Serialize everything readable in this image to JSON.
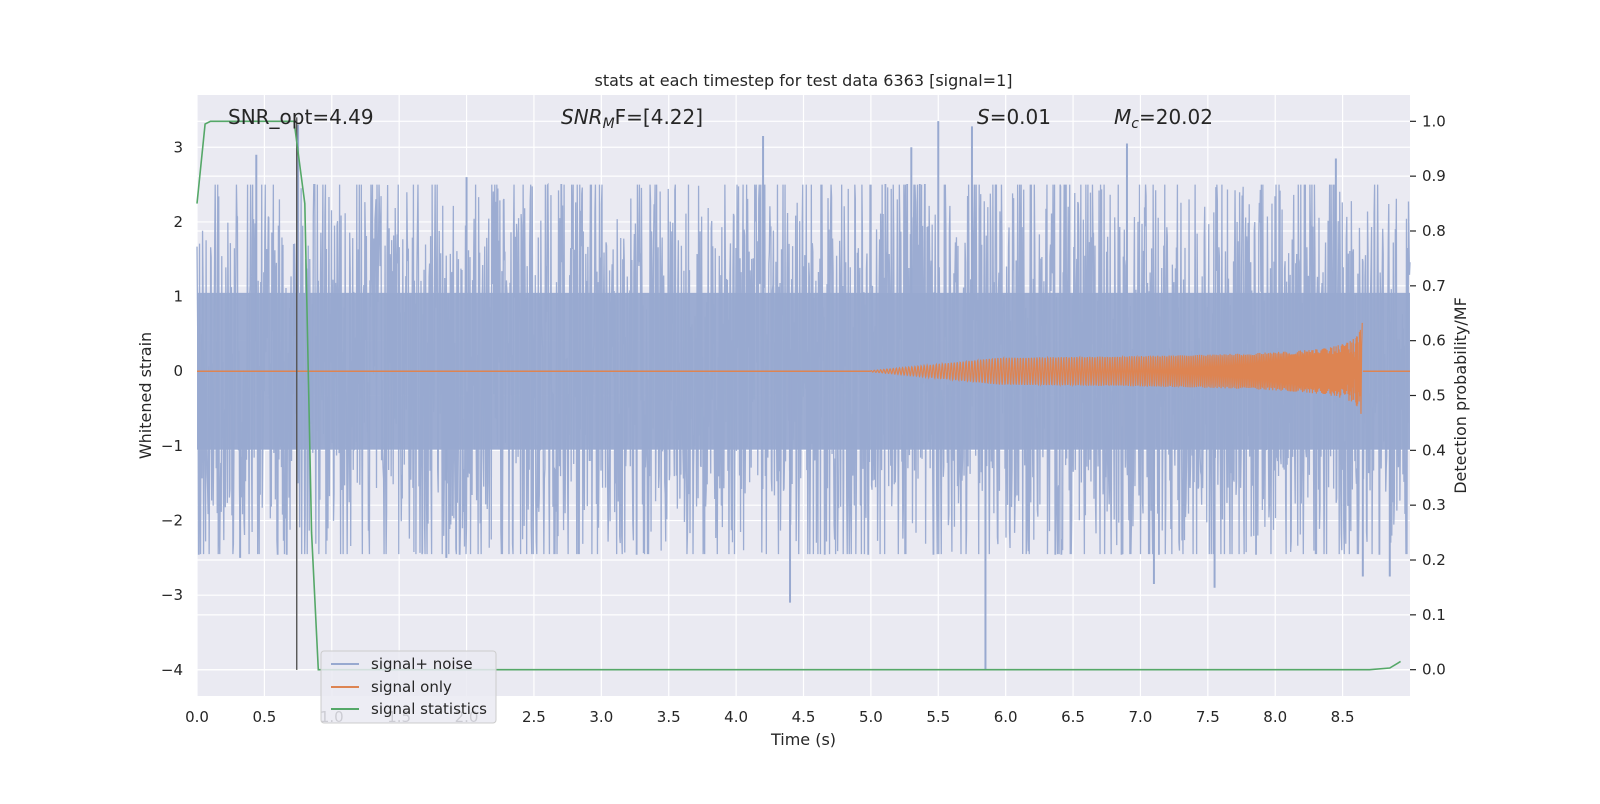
{
  "chart_data": {
    "type": "line",
    "title": "stats at each timestep for test data 6363 [signal=1]",
    "xlabel": "Time (s)",
    "ylabel_left": "Whitened strain",
    "ylabel_right": "Detection probability/MF",
    "xlim": [
      0.0,
      9.0
    ],
    "ylim_left": [
      -4.35,
      3.7
    ],
    "ylim_right": [
      -0.048,
      1.048
    ],
    "x_ticks": [
      "0.0",
      "0.5",
      "1.0",
      "1.5",
      "2.0",
      "2.5",
      "3.0",
      "3.5",
      "4.0",
      "4.5",
      "5.0",
      "5.5",
      "6.0",
      "6.5",
      "7.0",
      "7.5",
      "8.0",
      "8.5"
    ],
    "x_tick_values": [
      0.0,
      0.5,
      1.0,
      1.5,
      2.0,
      2.5,
      3.0,
      3.5,
      4.0,
      4.5,
      5.0,
      5.5,
      6.0,
      6.5,
      7.0,
      7.5,
      8.0,
      8.5
    ],
    "y_ticks_left": [
      "3",
      "2",
      "1",
      "0",
      "−1",
      "−2",
      "−3",
      "−4"
    ],
    "y_tick_values_left": [
      3,
      2,
      1,
      0,
      -1,
      -2,
      -3,
      -4
    ],
    "y_ticks_right": [
      "1.0",
      "0.9",
      "0.8",
      "0.7",
      "0.6",
      "0.5",
      "0.4",
      "0.3",
      "0.2",
      "0.1",
      "0.0"
    ],
    "y_tick_values_right": [
      1.0,
      0.9,
      0.8,
      0.7,
      0.6,
      0.5,
      0.4,
      0.3,
      0.2,
      0.1,
      0.0
    ],
    "grid": true,
    "legend_position": "lower-left",
    "legend": [
      "signal+ noise",
      "signal only",
      "signal statistics"
    ],
    "annotations": [
      {
        "label": "SNR_opt=4.49"
      },
      {
        "label_prefix": "SNR",
        "label_sub": "M",
        "label_suffix": "F=[4.22]"
      },
      {
        "label_prefix": "S",
        "label_suffix": "=0.01"
      },
      {
        "label_prefix": "M",
        "label_sub": "c",
        "label_suffix": "=20.02"
      }
    ],
    "series": [
      {
        "name": "signal+ noise",
        "color": "#98A9D0",
        "axis": "left",
        "kind": "noise",
        "x_range": [
          0.0,
          9.0
        ],
        "typical_amplitude": 1.6,
        "spikes": [
          {
            "x": 0.44,
            "y": 2.9
          },
          {
            "x": 0.75,
            "y": 3.3
          },
          {
            "x": 2.0,
            "y": 2.6
          },
          {
            "x": 4.2,
            "y": 3.15
          },
          {
            "x": 5.3,
            "y": 3.0
          },
          {
            "x": 5.5,
            "y": 3.35
          },
          {
            "x": 5.75,
            "y": 3.28
          },
          {
            "x": 6.9,
            "y": 3.05
          },
          {
            "x": 8.45,
            "y": 2.85
          },
          {
            "x": 0.32,
            "y": -2.5
          },
          {
            "x": 1.85,
            "y": -2.5
          },
          {
            "x": 4.4,
            "y": -3.1
          },
          {
            "x": 5.85,
            "y": -4.0
          },
          {
            "x": 7.1,
            "y": -2.85
          },
          {
            "x": 7.55,
            "y": -2.9
          },
          {
            "x": 8.65,
            "y": -2.75
          },
          {
            "x": 8.85,
            "y": -2.75
          }
        ]
      },
      {
        "name": "signal only",
        "color": "#DD8452",
        "axis": "left",
        "kind": "chirp",
        "start_x": 5.0,
        "end_x": 8.65,
        "peak_amplitude": 0.7
      },
      {
        "name": "signal statistics",
        "color": "#55A868",
        "axis": "right",
        "x": [
          0.0,
          0.06,
          0.1,
          0.2,
          0.4,
          0.6,
          0.72,
          0.8,
          0.85,
          0.9,
          1.0,
          2.0,
          3.0,
          4.0,
          5.0,
          6.0,
          7.0,
          8.0,
          8.7,
          8.85,
          8.93
        ],
        "y": [
          0.85,
          0.995,
          1.0,
          1.0,
          1.0,
          1.0,
          1.0,
          0.85,
          0.25,
          0.0,
          0.0,
          0.0,
          0.0,
          0.0,
          0.0,
          0.0,
          0.0,
          0.0,
          0.0,
          0.003,
          0.015
        ]
      }
    ],
    "vertical_marker": {
      "x": 0.74,
      "y_from": -4.0,
      "y_to": 3.4,
      "color": "#555555"
    }
  }
}
